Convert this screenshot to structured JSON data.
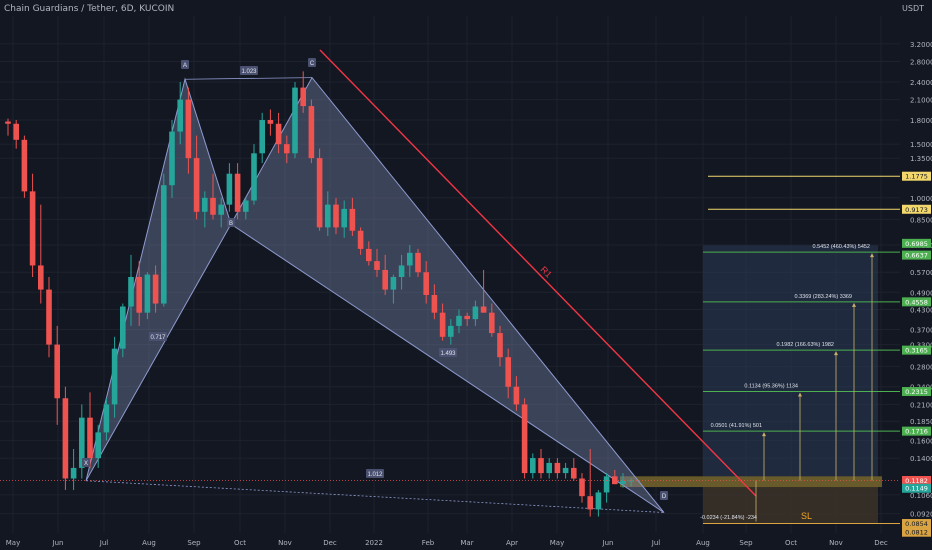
{
  "header": {
    "title": "Chain Guardians / Tether, 6D, KUCOIN"
  },
  "axis": {
    "unit": "USDT"
  },
  "chart_data": {
    "type": "candlestick",
    "title": "Chain Guardians / Tether, 6D, KUCOIN",
    "scale": "log",
    "x_ticks": [
      "May",
      "Jun",
      "Jul",
      "Aug",
      "Sep",
      "Oct",
      "Nov",
      "Dec",
      "2022",
      "Feb",
      "Mar",
      "Apr",
      "May",
      "Jun",
      "Jul",
      "Aug",
      "Sep",
      "Oct",
      "Nov",
      "Dec"
    ],
    "y_ticks": [
      "3.2000",
      "2.8000",
      "2.4000",
      "2.1000",
      "1.8000",
      "1.5000",
      "1.3500",
      "1.0000",
      "0.8500",
      "0.7000",
      "0.5700",
      "0.4900",
      "0.4300",
      "0.3700",
      "0.3300",
      "0.2800",
      "0.2400",
      "0.2100",
      "0.1850",
      "0.1600",
      "0.1400",
      "0.1060",
      "0.0920"
    ],
    "ohlc": [
      [
        1.78,
        1.82,
        1.6,
        1.75
      ],
      [
        1.75,
        1.8,
        1.45,
        1.55
      ],
      [
        1.55,
        1.6,
        1.0,
        1.05
      ],
      [
        1.05,
        1.2,
        0.55,
        0.6
      ],
      [
        0.6,
        0.95,
        0.45,
        0.5
      ],
      [
        0.5,
        0.55,
        0.3,
        0.33
      ],
      [
        0.33,
        0.38,
        0.18,
        0.22
      ],
      [
        0.22,
        0.24,
        0.11,
        0.12
      ],
      [
        0.12,
        0.15,
        0.11,
        0.13
      ],
      [
        0.13,
        0.21,
        0.12,
        0.19
      ],
      [
        0.19,
        0.23,
        0.13,
        0.14
      ],
      [
        0.14,
        0.18,
        0.13,
        0.17
      ],
      [
        0.17,
        0.22,
        0.16,
        0.21
      ],
      [
        0.21,
        0.35,
        0.19,
        0.32
      ],
      [
        0.32,
        0.45,
        0.3,
        0.44
      ],
      [
        0.44,
        0.65,
        0.38,
        0.55
      ],
      [
        0.55,
        0.62,
        0.38,
        0.42
      ],
      [
        0.42,
        0.57,
        0.4,
        0.56
      ],
      [
        0.56,
        0.6,
        0.42,
        0.45
      ],
      [
        0.45,
        1.2,
        0.44,
        1.1
      ],
      [
        1.1,
        1.8,
        1.0,
        1.65
      ],
      [
        1.65,
        2.4,
        1.5,
        2.1
      ],
      [
        2.1,
        2.3,
        1.2,
        1.35
      ],
      [
        1.35,
        1.6,
        0.85,
        0.9
      ],
      [
        0.9,
        1.05,
        0.8,
        1.0
      ],
      [
        1.0,
        1.2,
        0.85,
        0.88
      ],
      [
        0.88,
        1.0,
        0.8,
        0.95
      ],
      [
        0.95,
        1.3,
        0.9,
        1.2
      ],
      [
        1.2,
        1.3,
        0.85,
        0.9
      ],
      [
        0.9,
        1.0,
        0.85,
        0.98
      ],
      [
        0.98,
        1.5,
        0.95,
        1.4
      ],
      [
        1.4,
        1.9,
        1.3,
        1.8
      ],
      [
        1.8,
        1.95,
        1.6,
        1.75
      ],
      [
        1.75,
        1.9,
        1.4,
        1.5
      ],
      [
        1.5,
        1.6,
        1.3,
        1.4
      ],
      [
        1.4,
        2.4,
        1.35,
        2.3
      ],
      [
        2.3,
        2.6,
        1.9,
        2.0
      ],
      [
        2.0,
        2.1,
        1.3,
        1.35
      ],
      [
        1.35,
        1.45,
        0.78,
        0.8
      ],
      [
        0.8,
        1.05,
        0.75,
        0.95
      ],
      [
        0.95,
        1.0,
        0.76,
        0.8
      ],
      [
        0.8,
        0.98,
        0.74,
        0.92
      ],
      [
        0.92,
        1.0,
        0.75,
        0.78
      ],
      [
        0.78,
        0.8,
        0.65,
        0.68
      ],
      [
        0.68,
        0.72,
        0.6,
        0.62
      ],
      [
        0.62,
        0.68,
        0.55,
        0.58
      ],
      [
        0.58,
        0.65,
        0.48,
        0.5
      ],
      [
        0.5,
        0.56,
        0.45,
        0.55
      ],
      [
        0.55,
        0.65,
        0.5,
        0.6
      ],
      [
        0.6,
        0.7,
        0.55,
        0.66
      ],
      [
        0.66,
        0.68,
        0.55,
        0.57
      ],
      [
        0.57,
        0.62,
        0.45,
        0.48
      ],
      [
        0.48,
        0.52,
        0.4,
        0.42
      ],
      [
        0.42,
        0.45,
        0.34,
        0.35
      ],
      [
        0.35,
        0.4,
        0.33,
        0.38
      ],
      [
        0.38,
        0.43,
        0.36,
        0.41
      ],
      [
        0.41,
        0.42,
        0.38,
        0.4
      ],
      [
        0.4,
        0.46,
        0.38,
        0.44
      ],
      [
        0.44,
        0.58,
        0.42,
        0.42
      ],
      [
        0.42,
        0.45,
        0.35,
        0.36
      ],
      [
        0.36,
        0.38,
        0.28,
        0.3
      ],
      [
        0.3,
        0.32,
        0.22,
        0.24
      ],
      [
        0.24,
        0.26,
        0.2,
        0.21
      ],
      [
        0.21,
        0.22,
        0.12,
        0.125
      ],
      [
        0.125,
        0.145,
        0.12,
        0.14
      ],
      [
        0.14,
        0.15,
        0.12,
        0.125
      ],
      [
        0.125,
        0.14,
        0.12,
        0.135
      ],
      [
        0.135,
        0.14,
        0.12,
        0.125
      ],
      [
        0.125,
        0.135,
        0.12,
        0.13
      ],
      [
        0.13,
        0.14,
        0.118,
        0.12
      ],
      [
        0.12,
        0.125,
        0.1,
        0.105
      ],
      [
        0.105,
        0.15,
        0.09,
        0.095
      ],
      [
        0.095,
        0.11,
        0.09,
        0.108
      ],
      [
        0.108,
        0.125,
        0.1,
        0.122
      ],
      [
        0.122,
        0.128,
        0.115,
        0.115
      ],
      [
        0.115,
        0.125,
        0.112,
        0.118
      ],
      [
        0.118,
        0.12,
        0.113,
        0.1182
      ]
    ],
    "pattern": {
      "points": {
        "X": 0.118,
        "A": 2.45,
        "B": 0.82,
        "C": 2.48,
        "D": 0.0928
      },
      "ratios": [
        "1.023",
        "0.717",
        "1.493",
        "1.012"
      ]
    },
    "resistance_label": "R1",
    "targets": [
      {
        "label": "0.0501 (41.91%) 501",
        "price": 0.1716
      },
      {
        "label": "0.1134 (95.36%) 1134",
        "price": 0.2315
      },
      {
        "label": "0.1982 (166.63%) 1982",
        "price": 0.3165
      },
      {
        "label": "0.3369 (283.24%) 3369",
        "price": 0.4558
      },
      {
        "label": "0.5452 (460.43%) 5452",
        "price": 0.6637
      }
    ],
    "stop_loss": {
      "label": "SL",
      "text": "-0.0234 (-21.84%) -234",
      "price": 0.0854
    },
    "price_labels": [
      {
        "text": "1.1775",
        "kind": "yellow"
      },
      {
        "text": "0.9173",
        "kind": "yellow"
      },
      {
        "text": "0.6985",
        "kind": "green"
      },
      {
        "text": "0.6637",
        "kind": "green"
      },
      {
        "text": "0.4558",
        "kind": "green"
      },
      {
        "text": "0.3165",
        "kind": "green"
      },
      {
        "text": "0.2315",
        "kind": "green"
      },
      {
        "text": "0.1716",
        "kind": "green"
      },
      {
        "text": "0.1182",
        "kind": "red"
      },
      {
        "text": "0.1149",
        "kind": "ltgreen"
      },
      {
        "text": "0.0854",
        "kind": "orange"
      },
      {
        "text": "0.0812",
        "kind": "orange"
      }
    ]
  },
  "colors": {
    "background": "#131722",
    "up": "#26a69a",
    "down": "#ef5350",
    "pattern_fill": "#7d8bb3",
    "resistance": "#f23645",
    "target_lines": "#4caf50",
    "fib_lines": "#f2d86c",
    "entry_zone": "#6b5d2a",
    "stop_zone": "#3a3128"
  }
}
